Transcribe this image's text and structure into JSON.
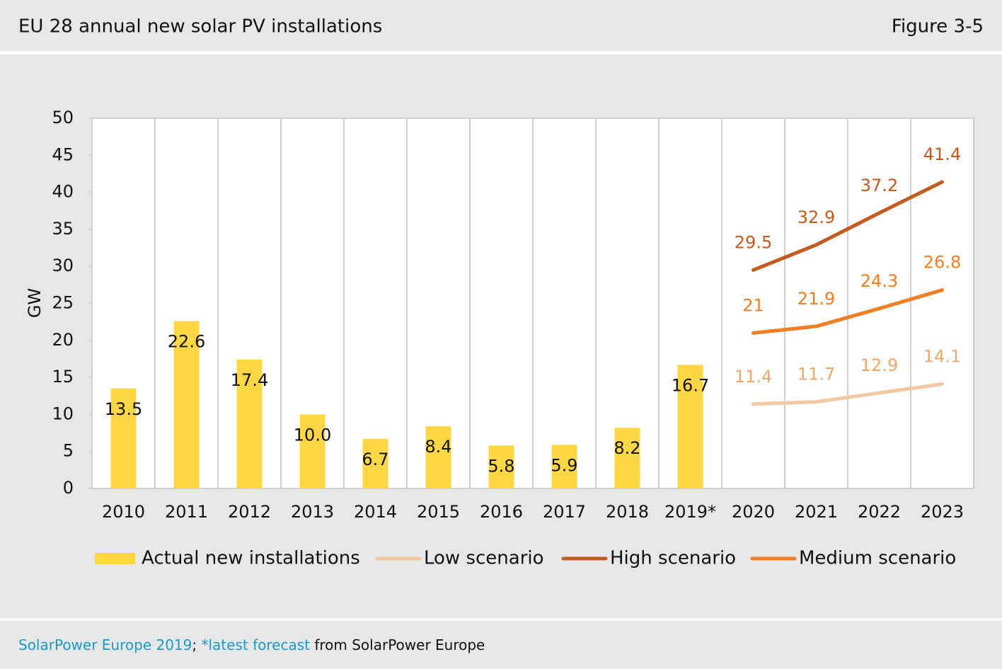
{
  "header": {
    "title": "EU 28 annual new solar PV installations",
    "figure": "Figure 3-5"
  },
  "footer": {
    "source": [
      "SolarPower Europe 2019",
      "; ",
      "*latest forecast",
      " from SolarPower Europe"
    ]
  },
  "chart_data": {
    "type": "combo",
    "ylabel": "GW",
    "categories": [
      "2010",
      "2011",
      "2012",
      "2013",
      "2014",
      "2015",
      "2016",
      "2017",
      "2018",
      "2019*",
      "2020",
      "2021",
      "2022",
      "2023"
    ],
    "ylim": [
      0,
      50
    ],
    "yticks": [
      0,
      5,
      10,
      15,
      20,
      25,
      30,
      35,
      40,
      45,
      50
    ],
    "grid": true,
    "series": [
      {
        "name": "Actual new installations",
        "type": "bar",
        "color": "#ffd744",
        "values": [
          13.5,
          22.6,
          17.4,
          10.0,
          6.7,
          8.4,
          5.8,
          5.9,
          8.2,
          16.7,
          null,
          null,
          null,
          null
        ],
        "value_labels": [
          "13.5",
          "22.6",
          "17.4",
          "10.0",
          "6.7",
          "8.4",
          "5.8",
          "5.9",
          "8.2",
          "16.7",
          null,
          null,
          null,
          null
        ]
      },
      {
        "name": "Low scenario",
        "type": "line",
        "color": "#f2c7a1",
        "label_color": "#f3a766",
        "values": [
          null,
          null,
          null,
          null,
          null,
          null,
          null,
          null,
          null,
          null,
          11.4,
          11.7,
          12.9,
          14.1
        ]
      },
      {
        "name": "High scenario",
        "type": "line",
        "color": "#c55a1e",
        "label_color": "#c55a1e",
        "values": [
          null,
          null,
          null,
          null,
          null,
          null,
          null,
          null,
          null,
          null,
          29.5,
          32.9,
          37.2,
          41.4
        ]
      },
      {
        "name": "Medium scenario",
        "type": "line",
        "color": "#f07f23",
        "label_color": "#f07f23",
        "values": [
          null,
          null,
          null,
          null,
          null,
          null,
          null,
          null,
          null,
          null,
          21,
          21.9,
          24.3,
          26.8
        ]
      }
    ]
  }
}
